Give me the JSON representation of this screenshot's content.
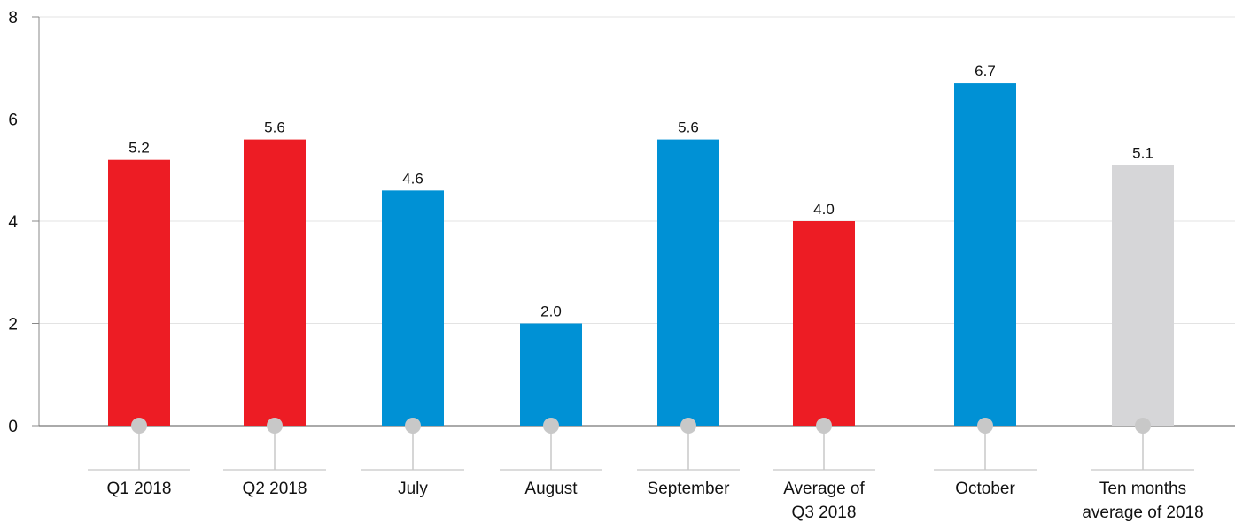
{
  "chart_data": {
    "type": "bar",
    "categories": [
      [
        "Q1 2018"
      ],
      [
        "Q2 2018"
      ],
      [
        "July"
      ],
      [
        "August"
      ],
      [
        "September"
      ],
      [
        "Average of",
        "Q3 2018"
      ],
      [
        "October"
      ],
      [
        "Ten months",
        "average of 2018"
      ]
    ],
    "values": [
      5.2,
      5.6,
      4.6,
      2.0,
      5.6,
      4.0,
      6.7,
      5.1
    ],
    "value_labels": [
      "5.2",
      "5.6",
      "4.6",
      "2.0",
      "5.6",
      "4.0",
      "6.7",
      "5.1"
    ],
    "bar_colors": [
      "#ed1c24",
      "#ed1c24",
      "#0091d5",
      "#0091d5",
      "#0091d5",
      "#ed1c24",
      "#0091d5",
      "#d6d6d8"
    ],
    "ylim": [
      0,
      8
    ],
    "yticks": [
      "0",
      "2",
      "4",
      "6",
      "8"
    ],
    "grid": true,
    "title": "",
    "xlabel": "",
    "ylabel": ""
  },
  "colors": {
    "red": "#ed1c24",
    "blue": "#0091d5",
    "grey": "#d6d6d8",
    "marker": "#c8c8c8"
  }
}
